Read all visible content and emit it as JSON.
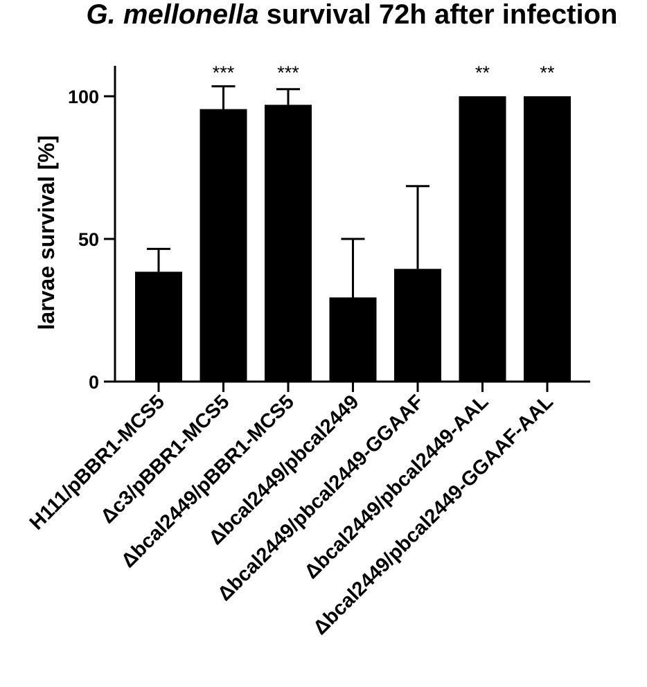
{
  "chart_data": {
    "type": "bar",
    "title_italic": "G. mellonella",
    "title_rest": " survival 72h after infection",
    "xlabel": "",
    "ylabel": "larvae survival [%]",
    "ylim": [
      0,
      100
    ],
    "yticks": [
      0,
      50,
      100
    ],
    "grid": false,
    "legend": "none",
    "bar_color": "#000000",
    "categories": [
      "H111/pBBR1-MCS5",
      "Δc3/pBBR1-MCS5",
      "Δbcal2449/pBBR1-MCS5",
      "Δbcal2449/pbcal2449",
      "Δbcal2449/pbcal2449-GGAAF",
      "Δbcal2449/pbcal2449-AAL",
      "Δbcal2449/pbcal2449-GGAAF-AAL"
    ],
    "values": [
      38.5,
      95.5,
      97,
      29.5,
      39.5,
      100,
      100
    ],
    "error_upper": [
      8,
      8,
      5.5,
      20.5,
      29,
      0,
      0
    ],
    "significance": [
      "",
      "***",
      "***",
      "",
      "",
      "**",
      "**"
    ]
  }
}
